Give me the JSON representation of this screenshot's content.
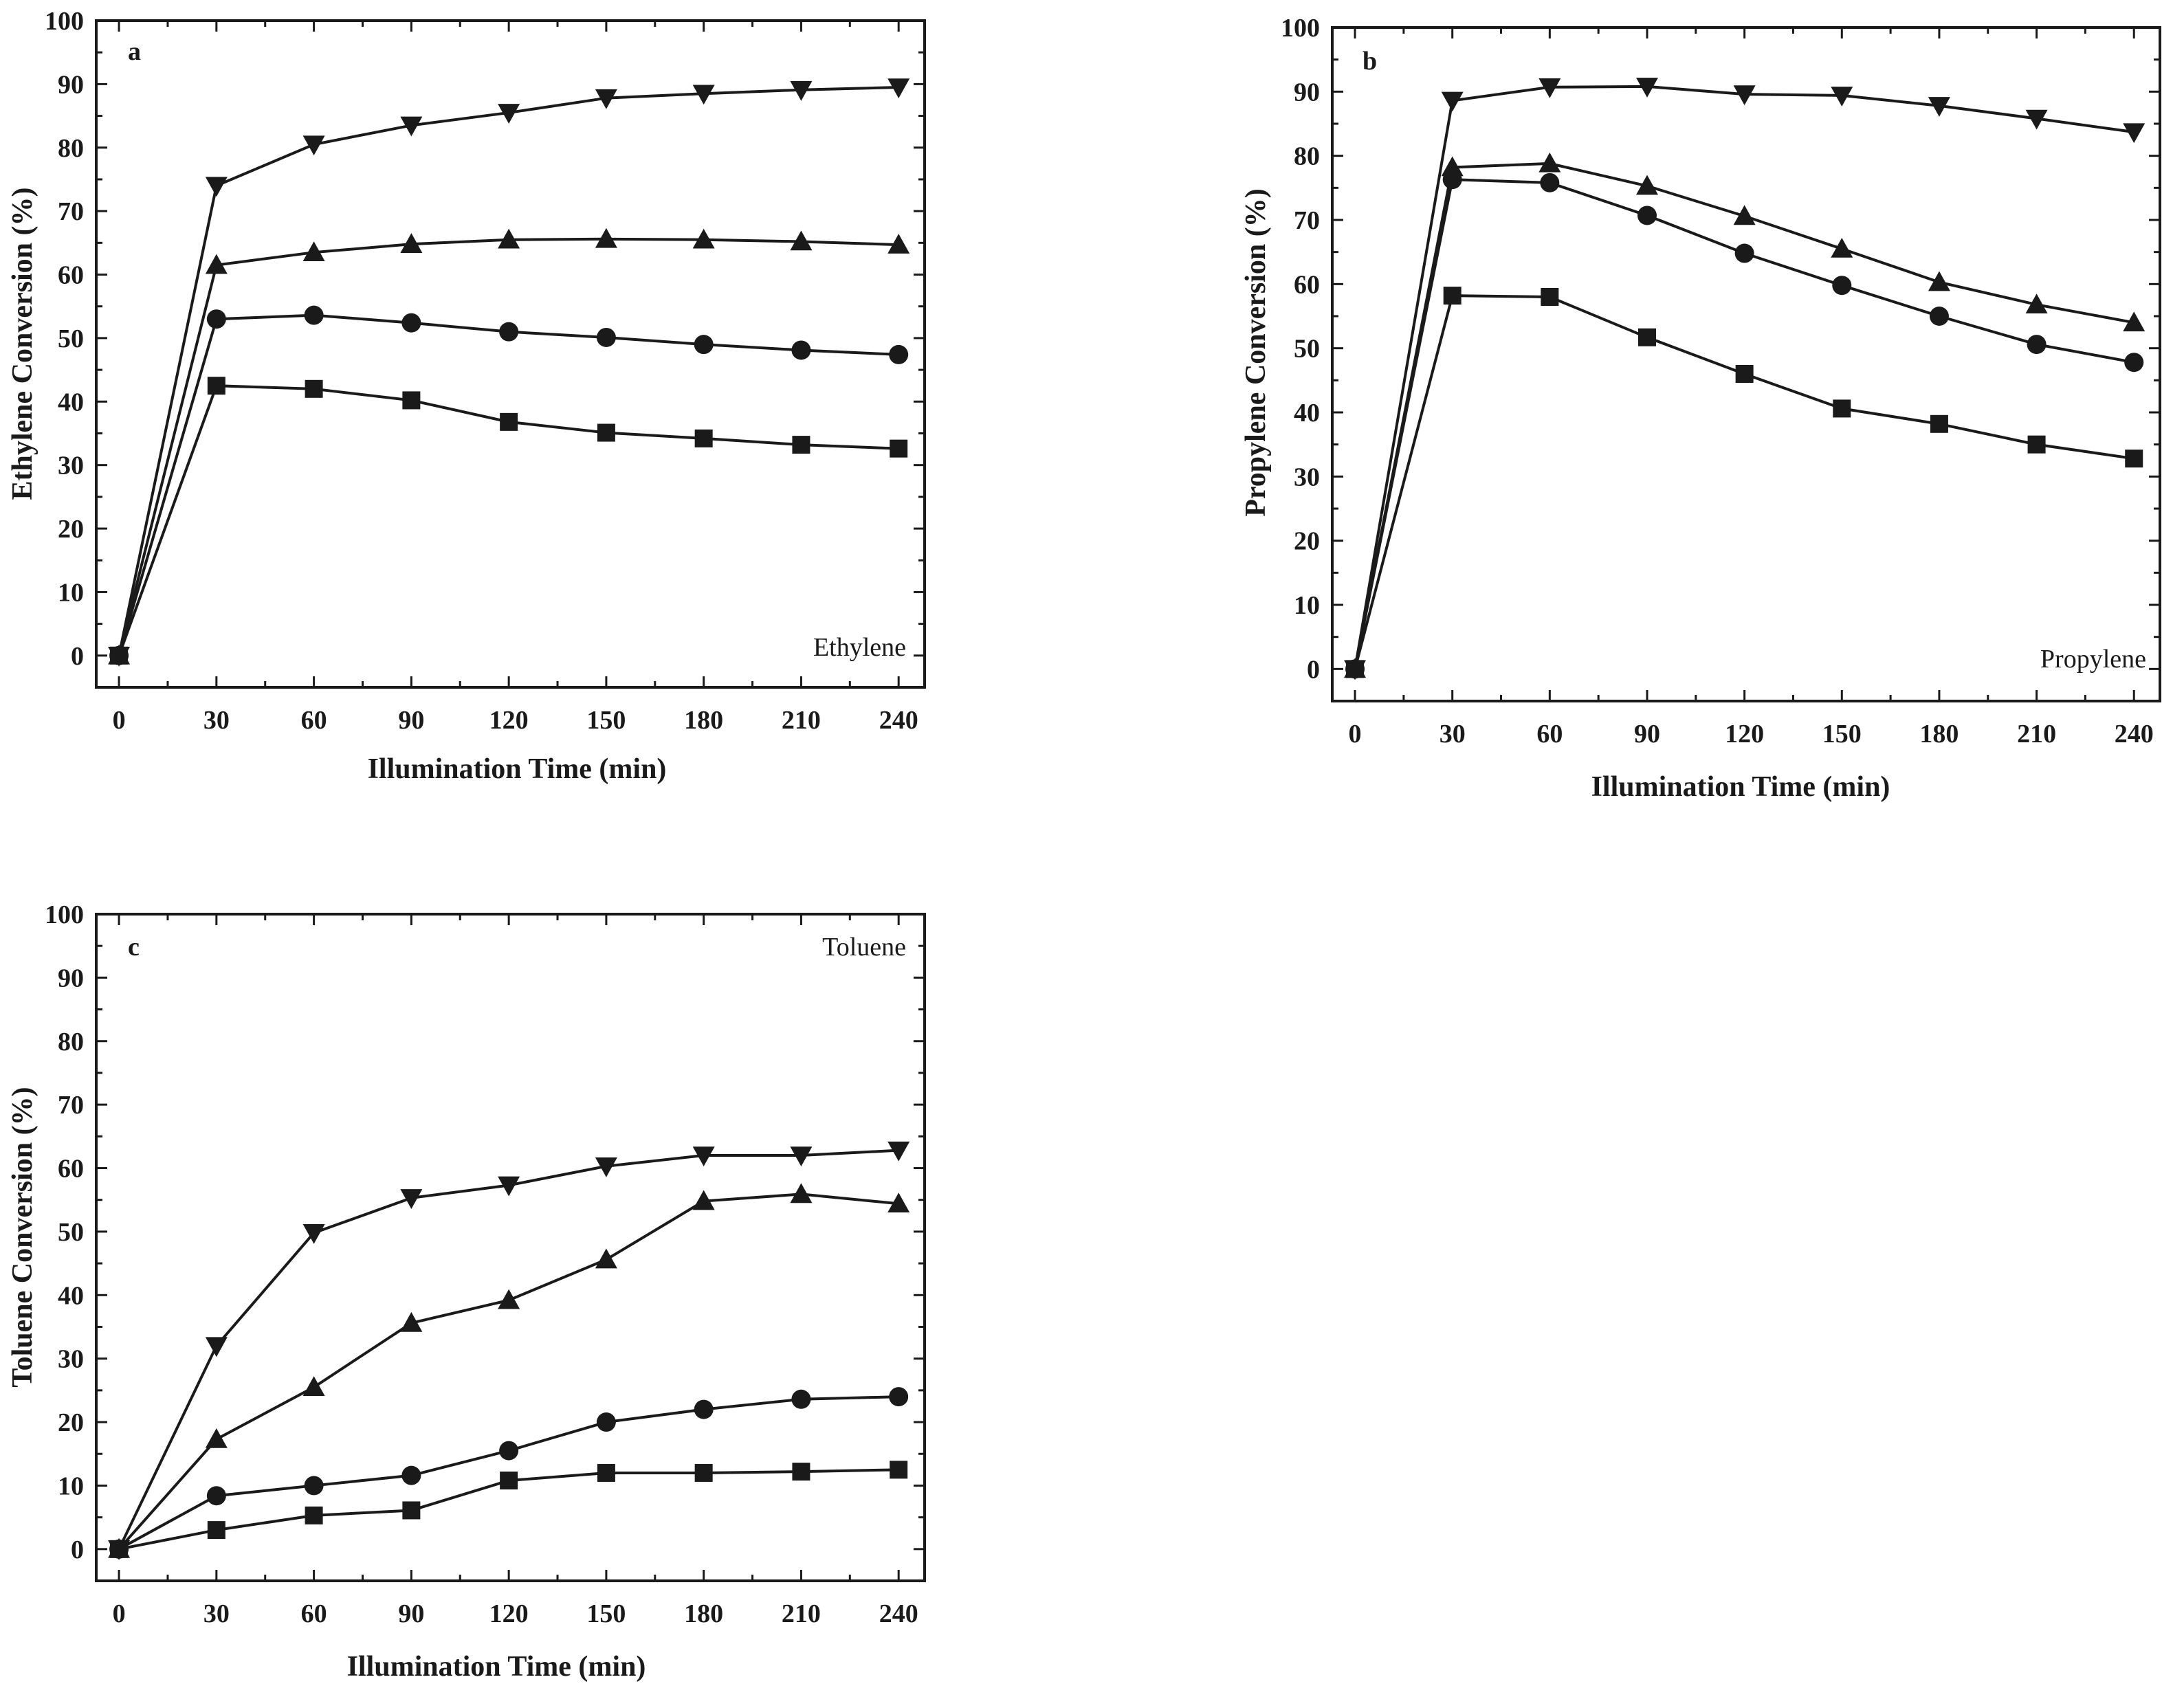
{
  "chart_data": [
    {
      "type": "line",
      "panel": "a",
      "compound_label": "Ethylene",
      "compound_label_position": "bottom-right",
      "xlabel": "Illumination Time (min)",
      "ylabel": "Ethylene Conversion (%)",
      "x": [
        0,
        30,
        60,
        90,
        120,
        150,
        180,
        210,
        240
      ],
      "xlim": [
        -7,
        248
      ],
      "ylim": [
        -5,
        100
      ],
      "xticks": [
        "0",
        "30",
        "60",
        "90",
        "120",
        "150",
        "180",
        "210",
        "240"
      ],
      "yticks": [
        "0",
        "10",
        "20",
        "30",
        "40",
        "50",
        "60",
        "70",
        "80",
        "90",
        "100"
      ],
      "grid": false,
      "series": [
        {
          "marker": "square",
          "values": [
            0,
            42.5,
            42,
            40.2,
            36.8,
            35.1,
            34.2,
            33.2,
            32.6
          ]
        },
        {
          "marker": "circle",
          "values": [
            0,
            53,
            53.6,
            52.4,
            51,
            50.1,
            49,
            48.1,
            47.4
          ]
        },
        {
          "marker": "triangle-up",
          "values": [
            0,
            61.5,
            63.5,
            64.8,
            65.5,
            65.6,
            65.5,
            65.2,
            64.7
          ]
        },
        {
          "marker": "triangle-down",
          "values": [
            0,
            74,
            80.5,
            83.5,
            85.5,
            87.8,
            88.5,
            89.1,
            89.5
          ]
        }
      ]
    },
    {
      "type": "line",
      "panel": "b",
      "compound_label": "Propylene",
      "compound_label_position": "bottom-right",
      "xlabel": "Illumination Time (min)",
      "ylabel": "Propylene Conversion (%)",
      "x": [
        0,
        30,
        60,
        90,
        120,
        150,
        180,
        210,
        240
      ],
      "xlim": [
        -7,
        248
      ],
      "ylim": [
        -5,
        100
      ],
      "xticks": [
        "0",
        "30",
        "60",
        "90",
        "120",
        "150",
        "180",
        "210",
        "240"
      ],
      "yticks": [
        "0",
        "10",
        "20",
        "30",
        "40",
        "50",
        "60",
        "70",
        "80",
        "90",
        "100"
      ],
      "grid": false,
      "series": [
        {
          "marker": "square",
          "values": [
            0,
            58.2,
            58,
            51.7,
            46,
            40.6,
            38.2,
            35,
            32.8
          ]
        },
        {
          "marker": "circle",
          "values": [
            0,
            76.3,
            75.8,
            70.7,
            64.8,
            59.8,
            55,
            50.6,
            47.8
          ]
        },
        {
          "marker": "triangle-up",
          "values": [
            0,
            78.2,
            78.8,
            75.3,
            70.6,
            65.5,
            60.3,
            56.8,
            54
          ]
        },
        {
          "marker": "triangle-down",
          "values": [
            0,
            88.6,
            90.7,
            90.8,
            89.6,
            89.4,
            87.8,
            85.8,
            83.7
          ]
        }
      ]
    },
    {
      "type": "line",
      "panel": "c",
      "compound_label": "Toluene",
      "compound_label_position": "top-right",
      "xlabel": "Illumination Time (min)",
      "ylabel": "Toluene Conversion (%)",
      "x": [
        0,
        30,
        60,
        90,
        120,
        150,
        180,
        210,
        240
      ],
      "xlim": [
        -7,
        248
      ],
      "ylim": [
        -5,
        100
      ],
      "xticks": [
        "0",
        "30",
        "60",
        "90",
        "120",
        "150",
        "180",
        "210",
        "240"
      ],
      "yticks": [
        "0",
        "10",
        "20",
        "30",
        "40",
        "50",
        "60",
        "70",
        "80",
        "90",
        "100"
      ],
      "grid": false,
      "series": [
        {
          "marker": "square",
          "values": [
            0,
            3,
            5.3,
            6.1,
            10.8,
            12,
            12,
            12.2,
            12.5
          ]
        },
        {
          "marker": "circle",
          "values": [
            0,
            8.4,
            10,
            11.6,
            15.5,
            20,
            22,
            23.6,
            24
          ]
        },
        {
          "marker": "triangle-up",
          "values": [
            0,
            17.3,
            25.5,
            35.6,
            39.2,
            45.6,
            54.8,
            55.9,
            54.4
          ]
        },
        {
          "marker": "triangle-down",
          "values": [
            0,
            32,
            49.8,
            55.3,
            57.3,
            60.3,
            62,
            62,
            62.8
          ]
        }
      ]
    }
  ]
}
